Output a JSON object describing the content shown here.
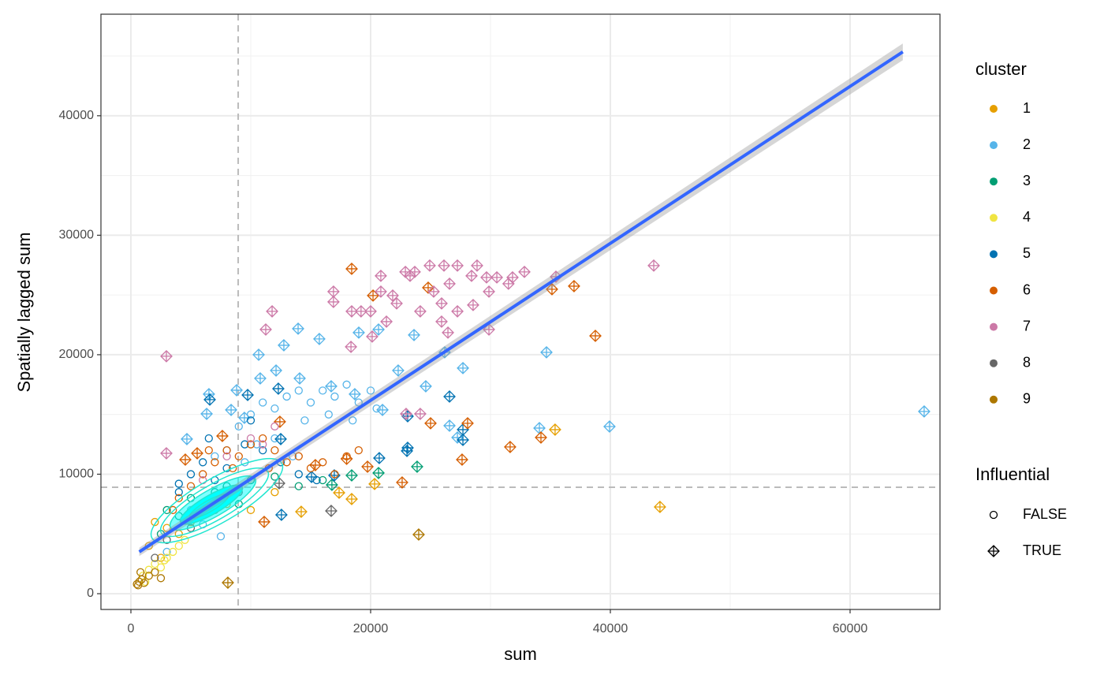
{
  "chart_data": {
    "type": "scatter",
    "x_label": "sum",
    "y_label": "Spatially lagged sum",
    "xlim": [
      -2500,
      67500
    ],
    "ylim": [
      -1320,
      48500
    ],
    "xticks": [
      0,
      20000,
      40000,
      60000
    ],
    "yticks": [
      0,
      10000,
      20000,
      30000,
      40000
    ],
    "xminor": [
      10000,
      30000,
      50000
    ],
    "yminor": [
      5000,
      15000,
      25000,
      35000,
      45000
    ],
    "grid": true,
    "vline": 8950,
    "hline": 8910,
    "fit": {
      "color": "#3366FF",
      "x": [
        700,
        64400
      ],
      "y": [
        3500,
        45350
      ],
      "se": [
        350,
        700
      ]
    },
    "color_legend_title": "cluster",
    "shape_legend": {
      "title": "Influential",
      "labels": [
        "FALSE",
        "TRUE"
      ]
    },
    "series": [
      {
        "name": "1",
        "color": "#E69F00",
        "groups": [
          {
            "x": [
              2000,
              3000,
              4000,
              5000,
              6000,
              8000,
              1500,
              2500,
              12000,
              10000
            ],
            "values": [
              6000,
              5500,
              5000,
              6000,
              7000,
              7500,
              4000,
              3000,
              8500,
              7000
            ]
          },
          {
            "x": [
              44140,
              35390,
              20330,
              18420,
              14210,
              17370
            ],
            "values": [
              7260,
              13730,
              9180,
              7920,
              6860,
              8450
            ]
          }
        ]
      },
      {
        "name": "2",
        "color": "#56B4E9",
        "groups": [
          {
            "x": [
              9000,
              10000,
              11000,
              12000,
              13000,
              14000,
              15000,
              16000,
              17000,
              18000,
              19000,
              20000,
              12000,
              10500,
              14500,
              16500,
              18500,
              8000,
              7000,
              9500,
              5000,
              3000,
              13500,
              20500,
              7500,
              6000
            ],
            "values": [
              14000,
              15000,
              16000,
              15500,
              16500,
              17000,
              16000,
              17000,
              16500,
              17500,
              16000,
              17000,
              13000,
              12500,
              14500,
              15000,
              14500,
              12000,
              11500,
              11000,
              7000,
              3500,
              11500,
              15500,
              4800,
              5800
            ]
          },
          {
            "x": [
              66180,
              39930,
              34670,
              34080,
              27700,
              26180,
              23620,
              20660,
              19010,
              15720,
              13950,
              12760,
              10660,
              8360,
              6320,
              4670,
              22300,
              24600,
              26580,
              27240,
              12110,
              14080,
              16710,
              18680,
              8820,
              10790,
              6510,
              20990,
              9470
            ],
            "values": [
              15250,
              13990,
              20200,
              13860,
              18880,
              20200,
              21650,
              22110,
              21850,
              21320,
              22180,
              20790,
              20000,
              15380,
              15050,
              12940,
              18680,
              17360,
              14060,
              13070,
              18680,
              18020,
              17360,
              16700,
              17030,
              18020,
              16700,
              15380,
              14720
            ]
          }
        ]
      },
      {
        "name": "3",
        "color": "#009E73",
        "groups": [
          {
            "x": [
              3000,
              4000,
              5000,
              6000,
              7000,
              8000,
              10000,
              12000,
              14000,
              16000,
              2500,
              9000
            ],
            "values": [
              7000,
              6500,
              8000,
              7500,
              8500,
              9000,
              9500,
              9800,
              9000,
              9500,
              5000,
              7500
            ]
          },
          {
            "x": [
              23880,
              20660,
              18420,
              16770
            ],
            "values": [
              10630,
              10100,
              9900,
              9110
            ]
          }
        ]
      },
      {
        "name": "4",
        "color": "#F0E442",
        "groups": [
          {
            "x": [
              1000,
              1500,
              2000,
              2500,
              3000,
              3500,
              4000,
              4500,
              1200,
              2800
            ],
            "values": [
              1500,
              2000,
              2500,
              2200,
              3000,
              3500,
              4000,
              4500,
              1000,
              2800
            ]
          },
          {
            "x": [],
            "values": []
          }
        ]
      },
      {
        "name": "5",
        "color": "#0072B2",
        "groups": [
          {
            "x": [
              4000,
              5000,
              6000,
              7000,
              8000,
              9500,
              11000,
              12500,
              14000,
              4000,
              6500,
              10000,
              15500
            ],
            "values": [
              8500,
              10000,
              11000,
              9500,
              10500,
              12500,
              12000,
              11000,
              10000,
              9200,
              13000,
              14500,
              9500
            ]
          },
          {
            "x": [
              6580,
              9740,
              12300,
              12500,
              26580,
              23090,
              23090,
              23030,
              27700,
              27700,
              20720,
              16970,
              12560,
              15070
            ],
            "values": [
              16240,
              16630,
              17160,
              12940,
              16500,
              14850,
              12210,
              11950,
              13730,
              12870,
              11350,
              9900,
              6600,
              9770
            ]
          }
        ]
      },
      {
        "name": "6",
        "color": "#D55E00",
        "groups": [
          {
            "x": [
              5000,
              6000,
              7000,
              8000,
              9000,
              10000,
              11000,
              12000,
              13000,
              14000,
              15000,
              16000,
              17000,
              18000,
              4000,
              3500,
              6500,
              11500,
              19000,
              8500
            ],
            "values": [
              9000,
              10000,
              11000,
              12000,
              11500,
              12500,
              13000,
              12000,
              11000,
              11500,
              10500,
              11000,
              10000,
              11500,
              8000,
              7000,
              12000,
              10500,
              12000,
              10500
            ]
          },
          {
            "x": [
              18420,
              20200,
              24800,
              35130,
              36970,
              38750,
              31640,
              34210,
              28090,
              27630,
              25000,
              22630,
              19740,
              18000,
              15390,
              11120,
              7630,
              4540,
              5530,
              12430
            ],
            "values": [
              27190,
              24950,
              25610,
              25480,
              25740,
              21580,
              12280,
              13070,
              14260,
              11220,
              14260,
              9310,
              10630,
              11290,
              10760,
              6010,
              13200,
              11220,
              11750,
              14390
            ]
          }
        ]
      },
      {
        "name": "7",
        "color": "#CC79A7",
        "groups": [
          {
            "x": [
              10000,
              11000,
              8000,
              12000,
              6000
            ],
            "values": [
              13000,
              12500,
              11500,
              14000,
              9500
            ]
          },
          {
            "x": [
              2960,
              2960,
              16900,
              16900,
              18420,
              19200,
              20000,
              20850,
              20850,
              22900,
              23290,
              23680,
              24140,
              24930,
              26120,
              27240,
              28880,
              29670,
              30530,
              31840,
              32830,
              28420,
              26580,
              25260,
              25920,
              27240,
              28550,
              29870,
              31500,
              35460,
              43620,
              29870,
              26450,
              25920,
              21320,
              20130,
              18360,
              21840,
              22170,
              11780,
              11250,
              22960,
              24140
            ],
            "values": [
              19870,
              11750,
              25280,
              24420,
              23630,
              23630,
              23630,
              25280,
              26600,
              26930,
              26600,
              26930,
              23630,
              27460,
              27460,
              27460,
              27460,
              26470,
              26470,
              26470,
              26930,
              26600,
              25940,
              25280,
              24290,
              23630,
              24160,
              25280,
              25940,
              26530,
              27460,
              22110,
              21850,
              22770,
              22770,
              21520,
              20660,
              24950,
              24290,
              23630,
              22110,
              15050,
              15050
            ]
          }
        ]
      },
      {
        "name": "8",
        "color": "#666666",
        "groups": [
          {
            "x": [
              3000,
              5000,
              7000,
              9000,
              2000
            ],
            "values": [
              4500,
              5500,
              7000,
              8500,
              3000
            ]
          },
          {
            "x": [
              16710,
              12370
            ],
            "values": [
              6930,
              9240
            ]
          }
        ]
      },
      {
        "name": "9",
        "color": "#AD7700",
        "groups": [
          {
            "x": [
              500,
              700,
              900,
              1100,
              600,
              1500,
              2000,
              2500,
              800
            ],
            "values": [
              800,
              1000,
              1200,
              900,
              700,
              1500,
              1800,
              1300,
              1800
            ]
          },
          {
            "x": [
              24010,
              8090
            ],
            "values": [
              4950,
              920
            ]
          }
        ]
      }
    ]
  }
}
